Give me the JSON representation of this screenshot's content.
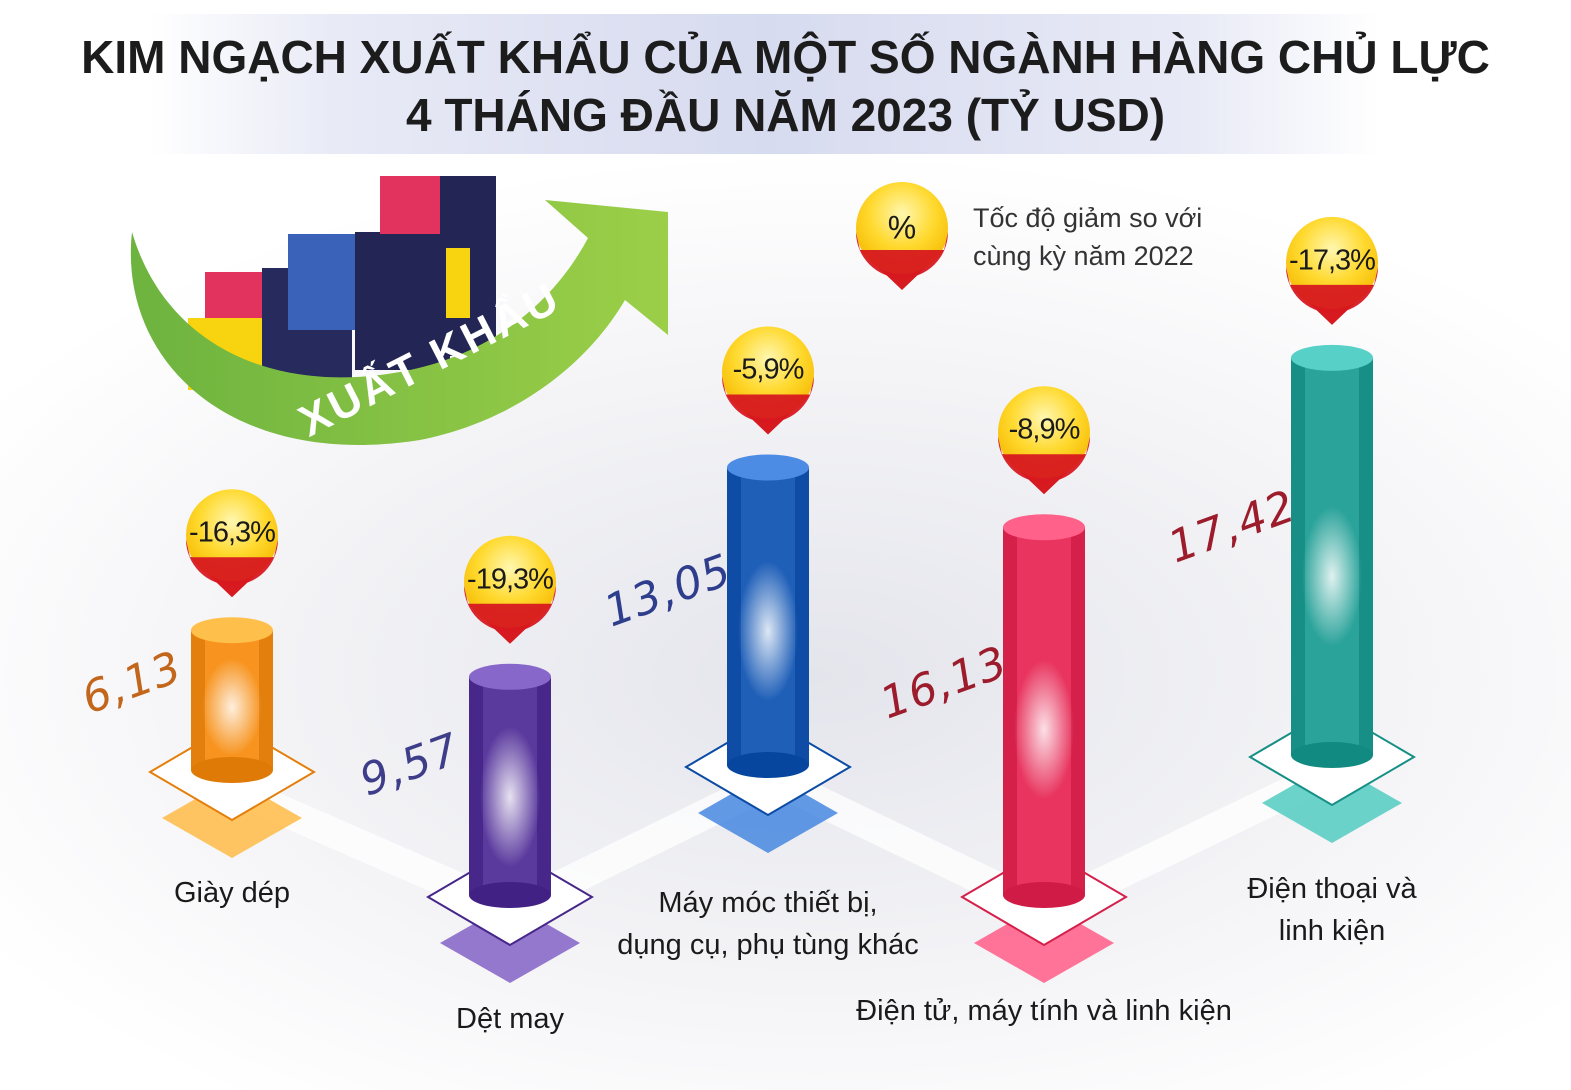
{
  "title": {
    "line1": "KIM NGẠCH XUẤT KHẨU CỦA MỘT SỐ NGÀNH HÀNG CHỦ LỰC",
    "line2": "4 THÁNG ĐẦU NĂM 2023 (TỶ USD)"
  },
  "legend": {
    "symbol": "%",
    "text": "Tốc độ giảm so với cùng kỳ năm 2022"
  },
  "badge_text": "XUẤT KHẨU",
  "colors": {
    "pin_yellow": "#ffd23a",
    "pin_red": "#d71920",
    "arrow_green": "#8cc63f"
  },
  "chart_data": {
    "type": "bar",
    "title": "KIM NGẠCH XUẤT KHẨU CỦA MỘT SỐ NGÀNH HÀNG CHỦ LỰC 4 THÁNG ĐẦU NĂM 2023 (TỶ USD)",
    "categories": [
      "Giày dép",
      "Dệt may",
      "Máy móc thiết bị,\ndụng cụ, phụ tùng khác",
      "Điện tử, máy tính và linh kiện",
      "Điện thoại và\nlinh kiện"
    ],
    "values": [
      6.13,
      9.57,
      13.05,
      16.13,
      17.42
    ],
    "value_labels": [
      "6,13",
      "9,57",
      "13,05",
      "16,13",
      "17,42"
    ],
    "change_labels": [
      "-16,3%",
      "-19,3%",
      "-5,9%",
      "-8,9%",
      "-17,3%"
    ],
    "change_values": [
      -16.3,
      -19.3,
      -5.9,
      -8.9,
      -17.3
    ],
    "unit": "Tỷ USD",
    "bar_colors": [
      "#f7931e",
      "#5b3a9e",
      "#1f5fb8",
      "#e8345e",
      "#2aa39a"
    ],
    "value_label_colors": [
      "#c2661c",
      "#3d3d8a",
      "#2e3d8c",
      "#9c1c2c",
      "#9c1c2c"
    ]
  }
}
